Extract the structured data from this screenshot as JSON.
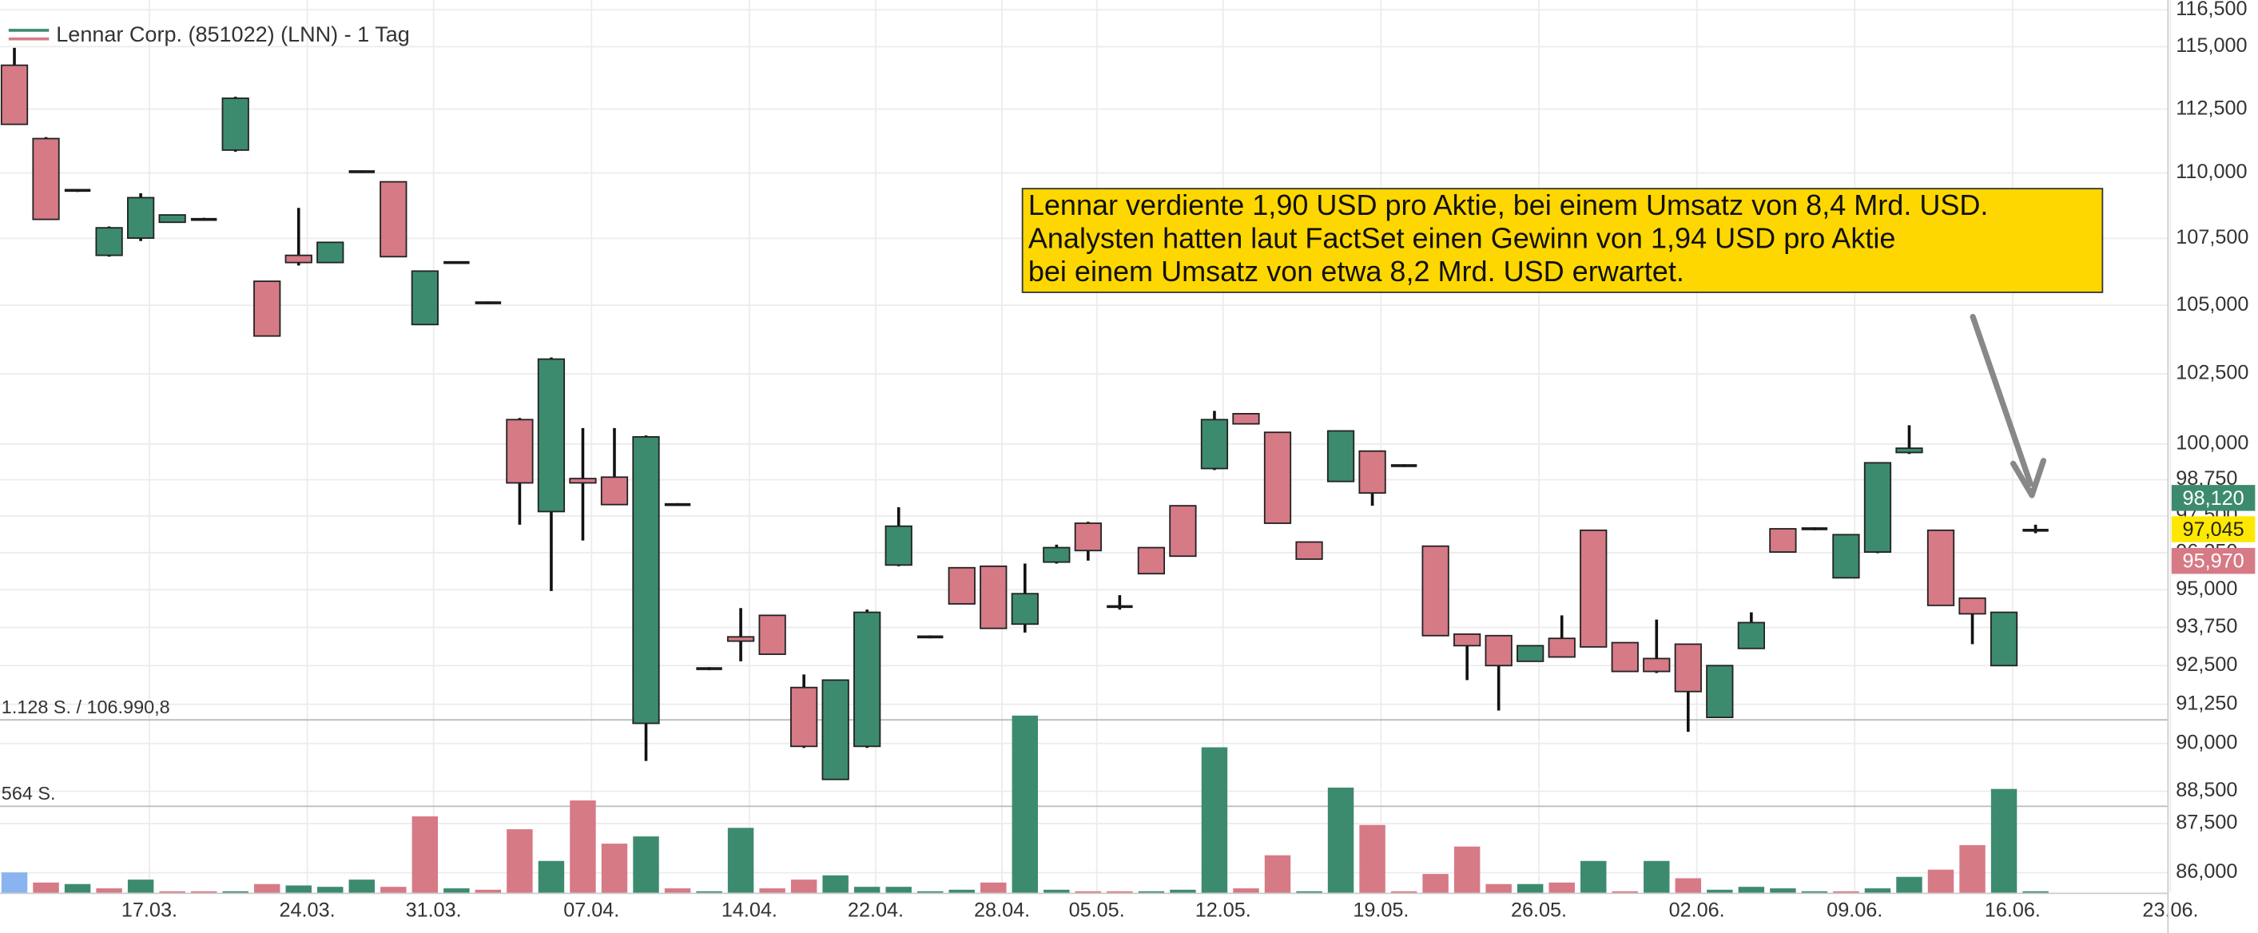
{
  "chart_data": {
    "type": "candlestick",
    "legend_label": "Lennar Corp. (851022) (LNN) - 1 Tag",
    "annotation": [
      "Lennar verdiente 1,90 USD pro Aktie, bei einem Umsatz von 8,4 Mrd. USD.",
      "Analysten hatten laut FactSet einen Gewinn von 1,94 USD pro Aktie",
      "bei einem Umsatz von etwa 8,2 Mrd. USD erwartet."
    ],
    "up_color": "#3d8b6e",
    "down_color": "#d67a86",
    "doji_color": "#1a1a1a",
    "annotation_color": "#ffd700",
    "log_scale": true,
    "grid": true,
    "ylim": [
      85400,
      116900
    ],
    "yticks": [
      {
        "value": 116500,
        "label": "116,500"
      },
      {
        "value": 115000,
        "label": "115,000"
      },
      {
        "value": 112500,
        "label": "112,500"
      },
      {
        "value": 110000,
        "label": "110,000"
      },
      {
        "value": 107500,
        "label": "107,500"
      },
      {
        "value": 105000,
        "label": "105,000"
      },
      {
        "value": 102500,
        "label": "102,500"
      },
      {
        "value": 100000,
        "label": "100,000"
      },
      {
        "value": 98750,
        "label": "98,750"
      },
      {
        "value": 97500,
        "label": "97,500"
      },
      {
        "value": 96250,
        "label": "96,250"
      },
      {
        "value": 95000,
        "label": "95,000"
      },
      {
        "value": 93750,
        "label": "93,750"
      },
      {
        "value": 92500,
        "label": "92,500"
      },
      {
        "value": 91250,
        "label": "91,250"
      },
      {
        "value": 90000,
        "label": "90,000"
      },
      {
        "value": 88500,
        "label": "88,500"
      },
      {
        "value": 87500,
        "label": "87,500"
      },
      {
        "value": 86000,
        "label": "86,000"
      }
    ],
    "price_markers": [
      {
        "value": 98120,
        "label": "98,120",
        "color": "#3d8b6e",
        "text_color": "#ffffff"
      },
      {
        "value": 97045,
        "label": "97,045",
        "color": "#ffe800",
        "text_color": "#222222"
      },
      {
        "value": 95970,
        "label": "95,970",
        "color": "#d67a86",
        "text_color": "#ffffff"
      }
    ],
    "categories": [
      null,
      null,
      null,
      null,
      "17.03.",
      null,
      null,
      null,
      null,
      "24.03.",
      null,
      null,
      null,
      "31.03.",
      null,
      null,
      null,
      null,
      "07.04.",
      null,
      null,
      null,
      null,
      "14.04.",
      null,
      null,
      null,
      "22.04.",
      null,
      null,
      null,
      "28.04.",
      null,
      null,
      "05.05.",
      null,
      null,
      null,
      "12.05.",
      null,
      null,
      null,
      null,
      "19.05.",
      null,
      null,
      null,
      null,
      "26.05.",
      null,
      null,
      null,
      null,
      "02.06.",
      null,
      null,
      null,
      null,
      "09.06.",
      null,
      null,
      null,
      null,
      "16.06.",
      null,
      null,
      null,
      null,
      "23.06."
    ],
    "open": [
      114250,
      111340,
      109330,
      106860,
      107510,
      108110,
      108220,
      110890,
      105890,
      106860,
      106590,
      110050,
      109660,
      104290,
      106590,
      105090,
      100860,
      97650,
      98790,
      98840,
      90640,
      97890,
      92400,
      93440,
      94150,
      91790,
      88870,
      89910,
      95830,
      93440,
      95740,
      95790,
      93860,
      95930,
      97250,
      94440,
      96420,
      97850,
      99140,
      101070,
      100410,
      96610,
      98690,
      99750,
      99240,
      96470,
      93530,
      93480,
      92640,
      93390,
      97010,
      93250,
      92730,
      93200,
      90830,
      93060,
      97060,
      97060,
      95400,
      96270,
      99700,
      97010,
      94720,
      92500,
      97010,
      null,
      null,
      null,
      null
    ],
    "high": [
      114950,
      111400,
      109380,
      107950,
      109220,
      108390,
      108280,
      112990,
      105890,
      108660,
      107350,
      110100,
      109660,
      106270,
      106640,
      105140,
      100920,
      103090,
      100560,
      100560,
      100300,
      97940,
      92450,
      94390,
      94150,
      92210,
      92030,
      94340,
      97800,
      93490,
      95740,
      95790,
      95880,
      96520,
      97300,
      94820,
      96420,
      97850,
      101170,
      101070,
      100410,
      96610,
      100460,
      99750,
      99290,
      96470,
      93530,
      93480,
      93150,
      94150,
      97010,
      93250,
      94010,
      93200,
      92500,
      94250,
      97060,
      97110,
      96860,
      99340,
      100660,
      97010,
      94720,
      94250,
      97200,
      null,
      null,
      null,
      null
    ],
    "low": [
      111900,
      108220,
      109270,
      106810,
      107400,
      108110,
      108170,
      110830,
      103870,
      106480,
      106590,
      110000,
      106810,
      104290,
      106540,
      105040,
      97200,
      94960,
      96660,
      97890,
      89450,
      97840,
      92350,
      92640,
      92870,
      89860,
      88870,
      89860,
      95790,
      93390,
      94530,
      93720,
      93580,
      95880,
      95980,
      94340,
      95540,
      96130,
      99090,
      100710,
      97250,
      96030,
      98690,
      97850,
      99190,
      93480,
      92030,
      91050,
      92640,
      92780,
      93110,
      92310,
      92260,
      90370,
      90830,
      93060,
      96270,
      97010,
      95400,
      96230,
      99650,
      94480,
      93200,
      92500,
      96910,
      null,
      null,
      null,
      null
    ],
    "close": [
      111900,
      108220,
      109330,
      107900,
      109050,
      108390,
      108220,
      112930,
      103870,
      106590,
      107350,
      110050,
      106810,
      106270,
      106590,
      105090,
      98640,
      103030,
      98640,
      97890,
      100250,
      97890,
      92400,
      93300,
      92870,
      89910,
      92030,
      94250,
      97150,
      93440,
      94530,
      93720,
      94870,
      96420,
      96320,
      94440,
      95540,
      96130,
      100860,
      100710,
      97250,
      96030,
      100460,
      98290,
      99240,
      93480,
      93150,
      92500,
      93150,
      92780,
      93110,
      92310,
      92310,
      91660,
      92500,
      93910,
      96270,
      97060,
      96860,
      99340,
      99850,
      94480,
      94200,
      94250,
      97010,
      null,
      null,
      null,
      null
    ],
    "volume_levels": [
      {
        "value": 1128,
        "label": "1.128 S. / 106.990,8"
      },
      {
        "value": 564,
        "label": "564 S."
      }
    ],
    "volume_ylim": [
      0,
      1316
    ],
    "volume": [
      132,
      66,
      56,
      28,
      85,
      9,
      9,
      9,
      56,
      47,
      38,
      85,
      38,
      498,
      28,
      19,
      414,
      207,
      602,
      320,
      367,
      28,
      9,
      423,
      28,
      85,
      113,
      38,
      38,
      9,
      19,
      66,
      1156,
      19,
      9,
      9,
      9,
      19,
      949,
      28,
      244,
      9,
      686,
      442,
      9,
      122,
      301,
      56,
      56,
      66,
      207,
      9,
      207,
      94,
      19,
      38,
      28,
      9,
      9,
      28,
      103,
      150,
      310,
      677,
      9,
      null,
      null,
      null,
      null
    ],
    "volume_colors": [
      "#8ab4f0",
      "#d67a86",
      "#3d8b6e",
      "#d67a86",
      "#3d8b6e",
      "#d67a86",
      "#d67a86",
      "#3d8b6e",
      "#d67a86",
      "#3d8b6e",
      "#3d8b6e",
      "#3d8b6e",
      "#d67a86",
      "#d67a86",
      "#3d8b6e",
      "#d67a86",
      "#d67a86",
      "#3d8b6e",
      "#d67a86",
      "#d67a86",
      "#3d8b6e",
      "#d67a86",
      "#3d8b6e",
      "#3d8b6e",
      "#d67a86",
      "#d67a86",
      "#3d8b6e",
      "#3d8b6e",
      "#3d8b6e",
      "#3d8b6e",
      "#3d8b6e",
      "#d67a86",
      "#3d8b6e",
      "#3d8b6e",
      "#d67a86",
      "#d67a86",
      "#3d8b6e",
      "#3d8b6e",
      "#3d8b6e",
      "#d67a86",
      "#d67a86",
      "#3d8b6e",
      "#3d8b6e",
      "#d67a86",
      "#d67a86",
      "#d67a86",
      "#d67a86",
      "#d67a86",
      "#3d8b6e",
      "#d67a86",
      "#3d8b6e",
      "#d67a86",
      "#3d8b6e",
      "#d67a86",
      "#3d8b6e",
      "#3d8b6e",
      "#3d8b6e",
      "#3d8b6e",
      "#d67a86",
      "#3d8b6e",
      "#3d8b6e",
      "#d67a86",
      "#d67a86",
      "#3d8b6e",
      "#3d8b6e",
      null,
      null,
      null,
      null
    ]
  }
}
